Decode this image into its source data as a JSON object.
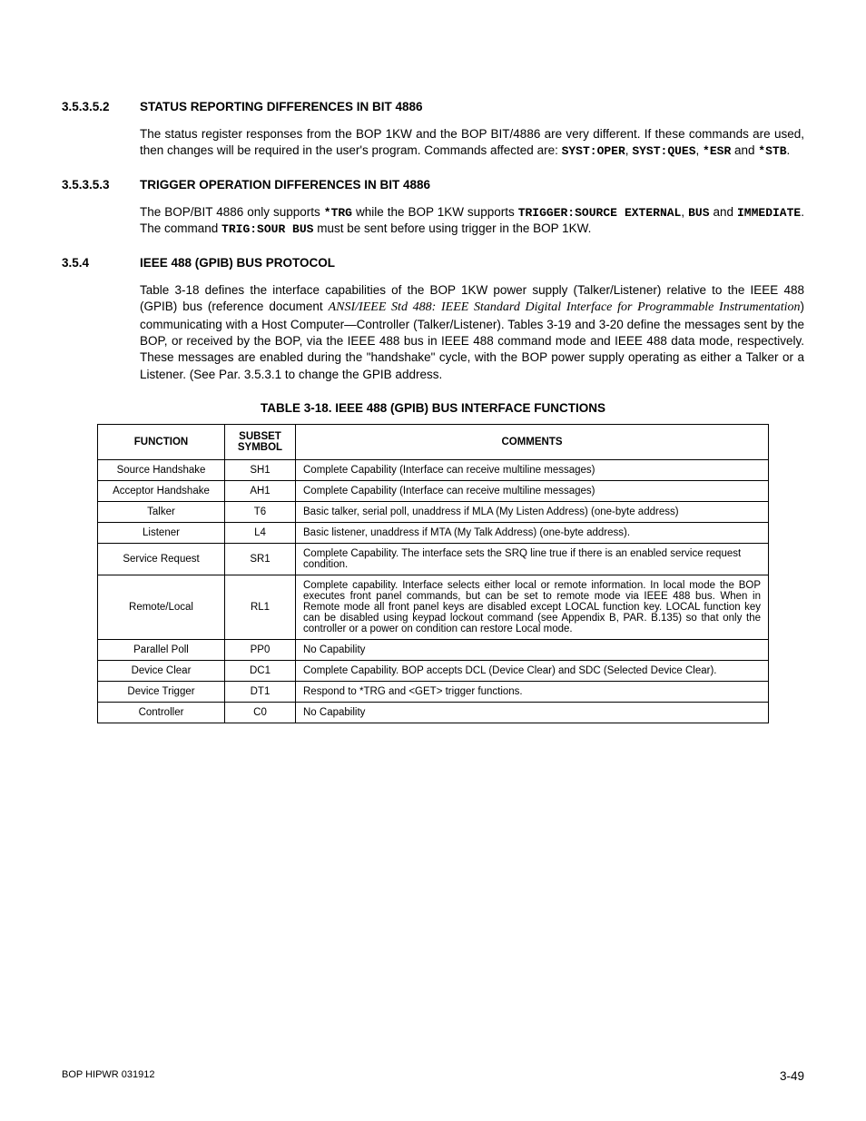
{
  "sections": {
    "s1": {
      "num": "3.5.3.5.2",
      "title": "STATUS REPORTING DIFFERENCES IN BIT 4886",
      "p_a": "The status register responses from the BOP 1KW and the BOP BIT/4886 are very different. If these commands are used, then changes will be required in the user's program. Commands affected are: ",
      "c1": "SYST:OPER",
      "c2": "SYST:QUES",
      "c3": "*ESR",
      "c4": "*STB",
      "and": " and "
    },
    "s2": {
      "num": "3.5.3.5.3",
      "title": "TRIGGER OPERATION DIFFERENCES IN BIT 4886",
      "p_a": "The BOP/BIT 4886 only supports ",
      "c1": "*TRG",
      "p_b": " while the BOP 1KW supports ",
      "c2": "TRIGGER:SOURCE EXTERNAL",
      "c3": "BUS",
      "c4": "IMMEDIATE",
      "p_c": ".   The command ",
      "c5": "TRIG:SOUR BUS",
      "p_d": " must be sent before using trigger in the BOP 1KW."
    },
    "s3": {
      "num": "3.5.4",
      "title": "IEEE 488 (GPIB) BUS PROTOCOL",
      "p_a": "Table 3-18 defines the interface capabilities of the BOP 1KW power supply (Talker/Listener) relative to the IEEE 488 (GPIB) bus (reference document ",
      "ref": "ANSI/IEEE Std 488: IEEE Standard Digital Interface for Programmable Instrumentation",
      "p_b": ") communicating with a Host Computer—Controller (Talker/Listener). Tables 3-19 and 3-20 define the messages sent by the BOP, or received by the BOP, via the IEEE 488 bus in IEEE 488 command mode and IEEE 488 data mode, respectively. These messages are enabled during the \"handshake\" cycle, with the BOP power supply operating as either a Talker or a Listener. (See Par. 3.5.3.1 to change the GPIB address."
    }
  },
  "table": {
    "caption": "TABLE 3-18.  IEEE 488 (GPIB) BUS INTERFACE FUNCTIONS",
    "headers": {
      "h1": "FUNCTION",
      "h2": "SUBSET SYMBOL",
      "h3": "COMMENTS"
    },
    "rows": [
      {
        "f": "Source Handshake",
        "s": "SH1",
        "c": "Complete Capability (Interface can receive multiline messages)",
        "j": false
      },
      {
        "f": "Acceptor Handshake",
        "s": "AH1",
        "c": "Complete Capability (Interface can receive multiline messages)",
        "j": false
      },
      {
        "f": "Talker",
        "s": "T6",
        "c": "Basic talker, serial poll, unaddress if MLA (My Listen Address) (one-byte address)",
        "j": false
      },
      {
        "f": "Listener",
        "s": "L4",
        "c": "Basic listener, unaddress if MTA (My Talk Address) (one-byte address).",
        "j": false
      },
      {
        "f": "Service Request",
        "s": "SR1",
        "c": "Complete Capability. The interface sets the SRQ line true if there is an enabled service request condition.",
        "j": false
      },
      {
        "f": "Remote/Local",
        "s": "RL1",
        "c": "Complete capability. Interface selects either local or remote information. In local mode the BOP executes front panel commands, but can be set to remote mode via IEEE 488 bus. When in Remote mode all front panel keys are disabled except LOCAL function key. LOCAL function key can be disabled using keypad lockout command (see Appendix B, PAR. B.135) so that only the controller or a power on condition can restore Local mode.",
        "j": true
      },
      {
        "f": "Parallel Poll",
        "s": "PP0",
        "c": "No Capability",
        "j": false
      },
      {
        "f": "Device Clear",
        "s": "DC1",
        "c": "Complete Capability. BOP accepts DCL (Device Clear) and SDC (Selected Device Clear).",
        "j": false
      },
      {
        "f": "Device Trigger",
        "s": "DT1",
        "c": "Respond to *TRG and <GET> trigger functions.",
        "j": false
      },
      {
        "f": "Controller",
        "s": "C0",
        "c": "No Capability",
        "j": false
      }
    ]
  },
  "footer": {
    "left": "BOP HIPWR 031912",
    "right": "3-49"
  }
}
